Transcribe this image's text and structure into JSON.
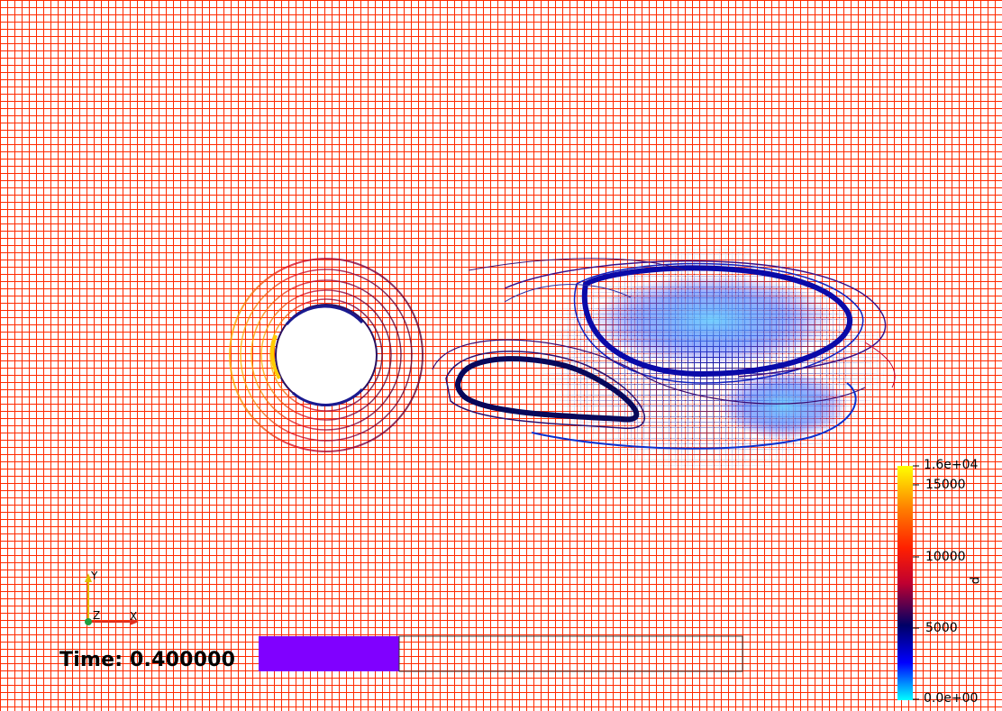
{
  "viewer": {
    "time_label": "Time: 0.400000",
    "scalar_name": "p"
  },
  "colorbar": {
    "colors": [
      "#00ffff",
      "#0000ff",
      "#000066",
      "#c00030",
      "#ff2000",
      "#ff8000",
      "#ffff00"
    ],
    "labels": {
      "max": "1.6e+04",
      "t15000": "15000",
      "t10000": "10000",
      "t5000": "5000",
      "min": "0.0e+00"
    }
  },
  "orientation_axes": {
    "x": "X",
    "y": "Y",
    "z": "Z",
    "x_color": "#e03020",
    "y_color": "#e0c000",
    "z_color": "#20a040"
  },
  "highlight_bar": {
    "color": "#8000ff"
  }
}
